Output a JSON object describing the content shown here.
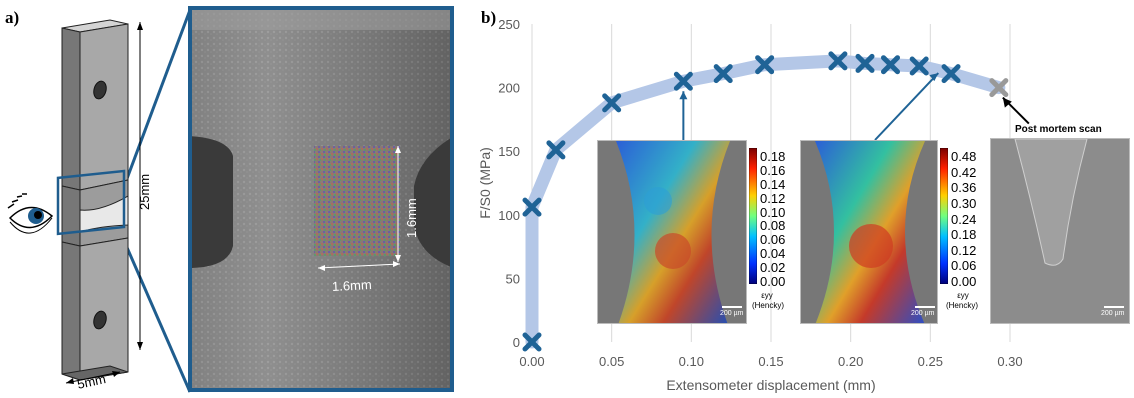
{
  "panel_a": {
    "label": "a)",
    "dim_length": "25mm",
    "dim_width": "5mm",
    "dim_gauge_height": "1.6mm",
    "dim_gauge_width": "1.6mm"
  },
  "panel_b": {
    "label": "b)",
    "post_mortem_label": "Post mortem scan",
    "inset1": {
      "colorbar_ticks": [
        "0.18",
        "0.16",
        "0.14",
        "0.12",
        "0.10",
        "0.08",
        "0.06",
        "0.04",
        "0.02",
        "0.00"
      ],
      "eps_label": "εyy",
      "hencky_label": "(Hencky)",
      "scale_label": "200 µm"
    },
    "inset2": {
      "colorbar_ticks": [
        "0.48",
        "0.42",
        "0.36",
        "0.30",
        "0.24",
        "0.18",
        "0.12",
        "0.06",
        "0.00"
      ],
      "eps_label": "εyy",
      "hencky_label": "(Hencky)",
      "scale_label": "200 µm"
    },
    "inset3": {
      "scale_label": "200 µm"
    }
  },
  "colors": {
    "frame_blue": "#1f5d8e",
    "marker_blue": "#1f6396",
    "curve_band": "#b4c7e7",
    "final_marker": "#999999"
  },
  "chart_data": {
    "type": "scatter",
    "xlabel": "Extensometer displacement (mm)",
    "ylabel": "F/S0 (MPa)",
    "xlim": [
      0.0,
      0.3
    ],
    "ylim": [
      0,
      250
    ],
    "xticks": [
      "0.00",
      "0.05",
      "0.10",
      "0.15",
      "0.20",
      "0.25",
      "0.30"
    ],
    "yticks": [
      "0",
      "50",
      "100",
      "150",
      "200",
      "250"
    ],
    "grid": "vertical",
    "series": [
      {
        "x": [
          0.0,
          0.0,
          0.015,
          0.05,
          0.095,
          0.12,
          0.146,
          0.192,
          0.209,
          0.225,
          0.243,
          0.263,
          0.293
        ],
        "y": [
          0,
          106,
          151,
          188,
          205,
          211,
          218,
          221,
          219,
          218,
          217,
          211,
          200
        ]
      }
    ],
    "final_point_x": 0.293,
    "final_point_y": 200
  }
}
